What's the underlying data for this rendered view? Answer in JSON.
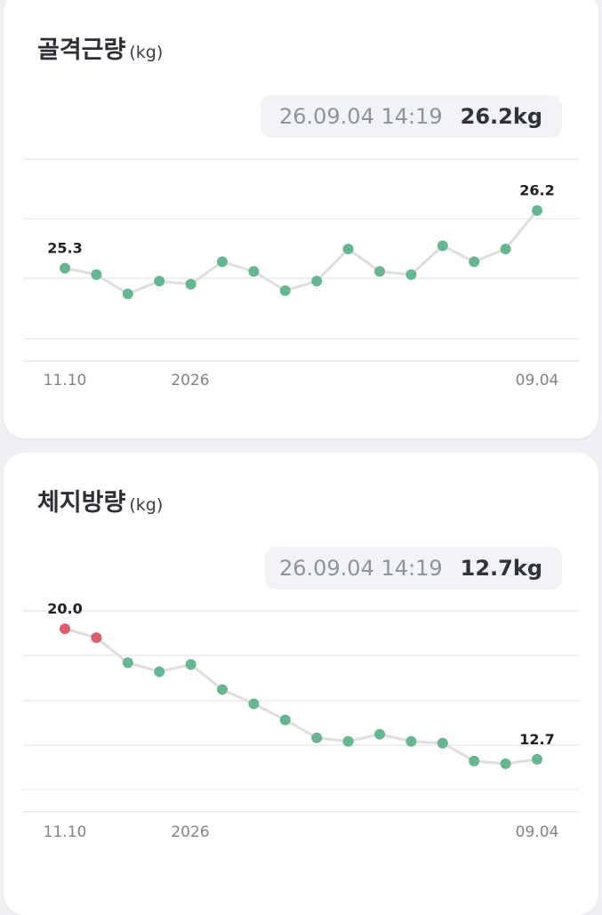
{
  "colors": {
    "normal": "#66b78f",
    "alert": "#dc5d6b",
    "line": "#dedede",
    "grid": "#e7e8ea"
  },
  "chart_data": [
    {
      "type": "line",
      "title": "골격근량",
      "unit": "(kg)",
      "readout": {
        "timestamp": "26.09.04 14:19",
        "value": "26.2kg"
      },
      "x_ticks": [
        "11.10",
        "2026",
        "09.04"
      ],
      "ylim": [
        24.2,
        27.0
      ],
      "series": [
        {
          "values": [
            25.3,
            25.2,
            24.9,
            25.1,
            25.05,
            25.4,
            25.25,
            24.95,
            25.1,
            25.6,
            25.25,
            25.2,
            25.65,
            25.4,
            25.6,
            26.2
          ]
        }
      ],
      "point_status": [
        "normal",
        "normal",
        "normal",
        "normal",
        "normal",
        "normal",
        "normal",
        "normal",
        "normal",
        "normal",
        "normal",
        "normal",
        "normal",
        "normal",
        "normal",
        "normal"
      ],
      "labeled_points": [
        {
          "index": 0,
          "label": "25.3"
        },
        {
          "index": 15,
          "label": "26.2"
        }
      ]
    },
    {
      "type": "line",
      "title": "체지방량",
      "unit": "(kg)",
      "readout": {
        "timestamp": "26.09.04 14:19",
        "value": "12.7kg"
      },
      "x_ticks": [
        "11.10",
        "2026",
        "09.04"
      ],
      "ylim": [
        11.0,
        21.0
      ],
      "series": [
        {
          "values": [
            20.0,
            19.5,
            18.1,
            17.6,
            18.0,
            16.6,
            15.8,
            14.9,
            13.9,
            13.7,
            14.1,
            13.7,
            13.6,
            12.6,
            12.45,
            12.7
          ]
        }
      ],
      "point_status": [
        "alert",
        "alert",
        "normal",
        "normal",
        "normal",
        "normal",
        "normal",
        "normal",
        "normal",
        "normal",
        "normal",
        "normal",
        "normal",
        "normal",
        "normal",
        "normal"
      ],
      "labeled_points": [
        {
          "index": 0,
          "label": "20.0"
        },
        {
          "index": 15,
          "label": "12.7"
        }
      ]
    }
  ]
}
